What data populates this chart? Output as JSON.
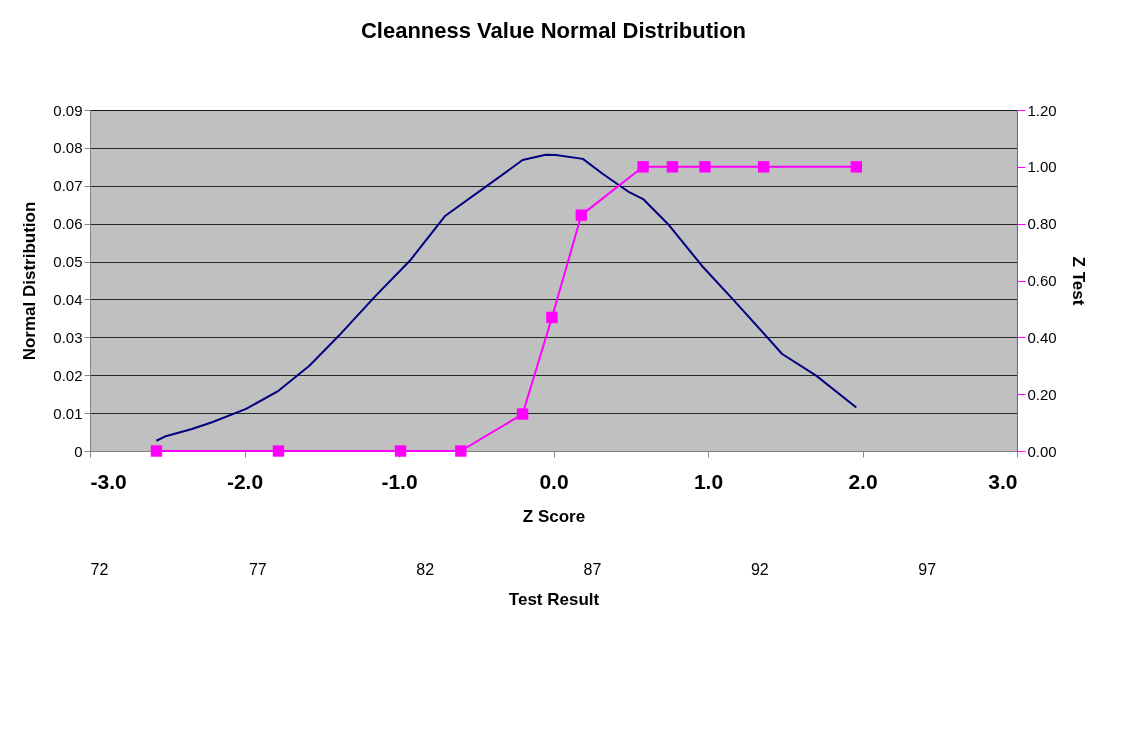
{
  "chart_data": {
    "type": "line",
    "title": "Cleanness Value Normal Distribution",
    "xlabel": "Z Score",
    "ylabel": "Normal Distribution",
    "y2label": "Z Test",
    "x2label": "Test Result",
    "xlim": [
      -3,
      3
    ],
    "xticks": [
      {
        "value": -3,
        "label": "-3.0"
      },
      {
        "value": -2,
        "label": "-2.0"
      },
      {
        "value": -1,
        "label": "-1.0"
      },
      {
        "value": 0,
        "label": "0.0"
      },
      {
        "value": 1,
        "label": "1.0"
      },
      {
        "value": 2,
        "label": "2.0"
      },
      {
        "value": 3,
        "label": "3.0"
      }
    ],
    "ylim": [
      0,
      0.09
    ],
    "yticks": [
      0,
      0.01,
      0.02,
      0.03,
      0.04,
      0.05,
      0.06,
      0.07,
      0.08,
      0.09
    ],
    "y2lim": [
      0,
      1.2
    ],
    "y2ticks": [
      {
        "value": 0,
        "label": "0.00"
      },
      {
        "value": 0.2,
        "label": "0.20"
      },
      {
        "value": 0.4,
        "label": "0.40"
      },
      {
        "value": 0.6,
        "label": "0.60"
      },
      {
        "value": 0.8,
        "label": "0.80"
      },
      {
        "value": 1,
        "label": "1.00"
      },
      {
        "value": 1.2,
        "label": "1.20"
      }
    ],
    "x2lim": [
      72,
      99.7
    ],
    "x2ticks": [
      72,
      77,
      82,
      87,
      92,
      97
    ],
    "grid": "y",
    "series": [
      {
        "color": "#000080",
        "marker": "none",
        "x": [
          -2.57,
          -2.51,
          -2.34,
          -2.21,
          -1.99,
          -1.78,
          -1.58,
          -1.39,
          -1.15,
          -0.93,
          -0.7,
          -0.46,
          -0.2,
          -0.05,
          0.015,
          0.19,
          0.32,
          0.49,
          0.58,
          0.75,
          0.96,
          1.16,
          1.48,
          1.7,
          1.96
        ],
        "values": [
          0.0027,
          0.0039,
          0.0058,
          0.0076,
          0.0111,
          0.0159,
          0.0225,
          0.0304,
          0.041,
          0.0502,
          0.0621,
          0.0691,
          0.0768,
          0.0782,
          0.0781,
          0.0771,
          0.0731,
          0.0683,
          0.0665,
          0.0595,
          0.0489,
          0.0401,
          0.0256,
          0.0199,
          0.0115
        ]
      },
      {
        "color": "#ff00ff",
        "marker": "square",
        "axis": "y2",
        "x": [
          -2.57,
          -1.78,
          -0.99,
          -0.6,
          -0.2,
          -0.01,
          0.18,
          0.58,
          0.77,
          0.98,
          1.36,
          1.96
        ],
        "values": [
          0,
          0,
          0,
          0,
          0.13,
          0.47,
          0.83,
          1,
          1,
          1,
          1,
          1
        ]
      }
    ]
  }
}
